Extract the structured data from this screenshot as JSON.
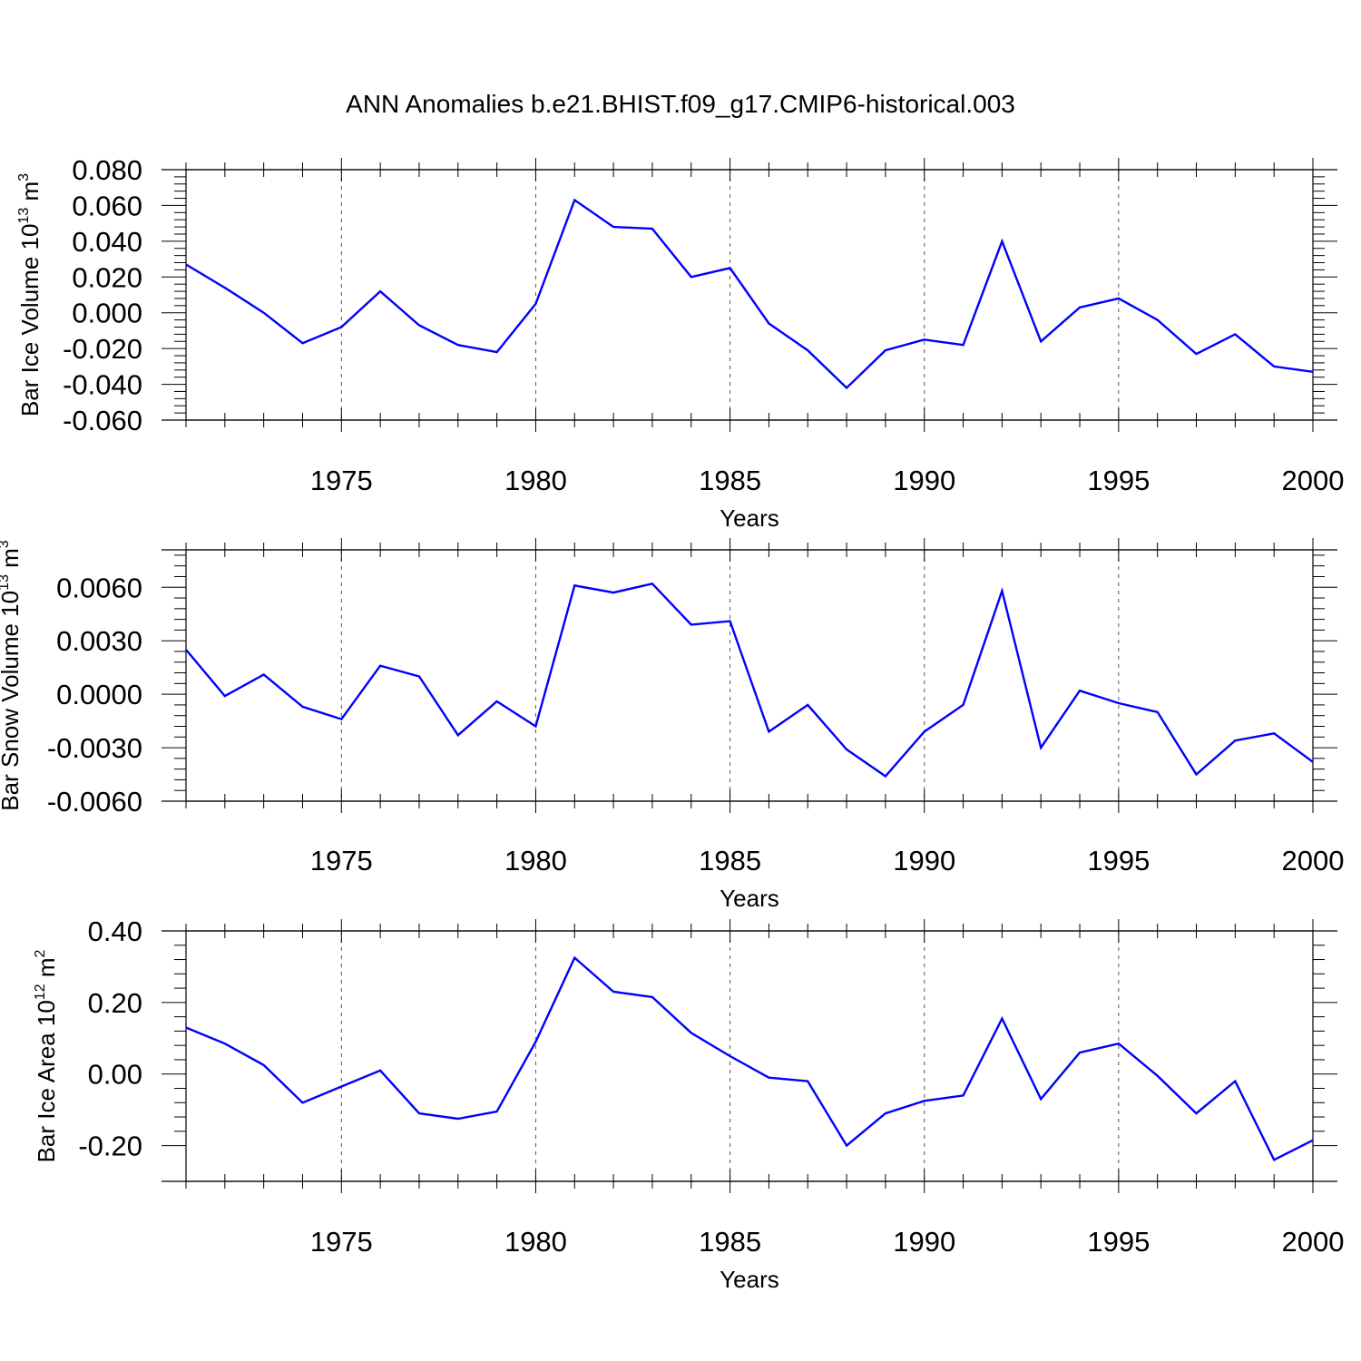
{
  "figure_title": "ANN Anomalies b.e21.BHIST.f09_g17.CMIP6-historical.003",
  "chart_data": [
    {
      "type": "line",
      "title": "",
      "xlabel": "Years",
      "ylabel": {
        "text": "Bar Ice Volume 10",
        "exp": "13",
        "unit": " m",
        "unit_exp": "3"
      },
      "xlim": [
        1971,
        2000
      ],
      "ylim": [
        -0.06,
        0.08
      ],
      "xticks": [
        1975,
        1980,
        1985,
        1990,
        1995,
        2000
      ],
      "xtick_labels": [
        "1975",
        "1980",
        "1985",
        "1990",
        "1995",
        "2000"
      ],
      "yticks": [
        -0.06,
        -0.04,
        -0.02,
        0.0,
        0.02,
        0.04,
        0.06,
        0.08
      ],
      "ytick_labels": [
        "-0.060",
        "-0.040",
        "-0.020",
        "0.000",
        "0.020",
        "0.040",
        "0.060",
        "0.080"
      ],
      "grid": "vertical-dashed-at-major-x",
      "line_color": "#0000ff",
      "x": [
        1971,
        1972,
        1973,
        1974,
        1975,
        1976,
        1977,
        1978,
        1979,
        1980,
        1981,
        1982,
        1983,
        1984,
        1985,
        1986,
        1987,
        1988,
        1989,
        1990,
        1991,
        1992,
        1993,
        1994,
        1995,
        1996,
        1997,
        1998,
        1999,
        2000
      ],
      "values": [
        0.027,
        0.014,
        0.0,
        -0.017,
        -0.008,
        0.012,
        -0.007,
        -0.018,
        -0.022,
        0.005,
        0.063,
        0.048,
        0.047,
        0.02,
        0.025,
        -0.006,
        -0.021,
        -0.042,
        -0.021,
        -0.015,
        -0.018,
        0.04,
        -0.016,
        0.003,
        0.008,
        -0.004,
        -0.023,
        -0.012,
        -0.03,
        -0.033
      ]
    },
    {
      "type": "line",
      "title": "",
      "xlabel": "Years",
      "ylabel": {
        "text": "Bar Snow Volume 10",
        "exp": "13",
        "unit": " m",
        "unit_exp": "3"
      },
      "xlim": [
        1971,
        2000
      ],
      "ylim": [
        -0.006,
        0.0081
      ],
      "xticks": [
        1975,
        1980,
        1985,
        1990,
        1995,
        2000
      ],
      "xtick_labels": [
        "1975",
        "1980",
        "1985",
        "1990",
        "1995",
        "2000"
      ],
      "yticks": [
        -0.006,
        -0.003,
        0.0,
        0.003,
        0.006
      ],
      "ytick_labels": [
        "-0.0060",
        "-0.0030",
        "0.0000",
        "0.0030",
        "0.0060"
      ],
      "grid": "vertical-dashed-at-major-x",
      "line_color": "#0000ff",
      "x": [
        1971,
        1972,
        1973,
        1974,
        1975,
        1976,
        1977,
        1978,
        1979,
        1980,
        1981,
        1982,
        1983,
        1984,
        1985,
        1986,
        1987,
        1988,
        1989,
        1990,
        1991,
        1992,
        1993,
        1994,
        1995,
        1996,
        1997,
        1998,
        1999,
        2000
      ],
      "values": [
        0.0025,
        -0.0001,
        0.0011,
        -0.0007,
        -0.0014,
        0.0016,
        0.001,
        -0.0023,
        -0.0004,
        -0.0018,
        0.0061,
        0.0057,
        0.0062,
        0.0039,
        0.0041,
        -0.0021,
        -0.0006,
        -0.0031,
        -0.0046,
        -0.0021,
        -0.0006,
        0.0058,
        -0.003,
        0.0002,
        -0.0005,
        -0.001,
        -0.0045,
        -0.0026,
        -0.0022,
        -0.0038
      ]
    },
    {
      "type": "line",
      "title": "",
      "xlabel": "Years",
      "ylabel": {
        "text": "Bar Ice Area 10",
        "exp": "12",
        "unit": " m",
        "unit_exp": "2"
      },
      "xlim": [
        1971,
        2000
      ],
      "ylim": [
        -0.3,
        0.4
      ],
      "xticks": [
        1975,
        1980,
        1985,
        1990,
        1995,
        2000
      ],
      "xtick_labels": [
        "1975",
        "1980",
        "1985",
        "1990",
        "1995",
        "2000"
      ],
      "yticks": [
        -0.2,
        0.0,
        0.2,
        0.4
      ],
      "ytick_labels": [
        "-0.20",
        "0.00",
        "0.20",
        "0.40"
      ],
      "grid": "vertical-dashed-at-major-x",
      "line_color": "#0000ff",
      "x": [
        1971,
        1972,
        1973,
        1974,
        1975,
        1976,
        1977,
        1978,
        1979,
        1980,
        1981,
        1982,
        1983,
        1984,
        1985,
        1986,
        1987,
        1988,
        1989,
        1990,
        1991,
        1992,
        1993,
        1994,
        1995,
        1996,
        1997,
        1998,
        1999,
        2000
      ],
      "values": [
        0.13,
        0.085,
        0.025,
        -0.08,
        -0.035,
        0.01,
        -0.11,
        -0.125,
        -0.105,
        0.09,
        0.325,
        0.23,
        0.215,
        0.115,
        0.05,
        -0.01,
        -0.02,
        -0.2,
        -0.11,
        -0.075,
        -0.06,
        0.155,
        -0.07,
        0.06,
        0.085,
        -0.005,
        -0.11,
        -0.02,
        -0.24,
        -0.185
      ]
    }
  ]
}
